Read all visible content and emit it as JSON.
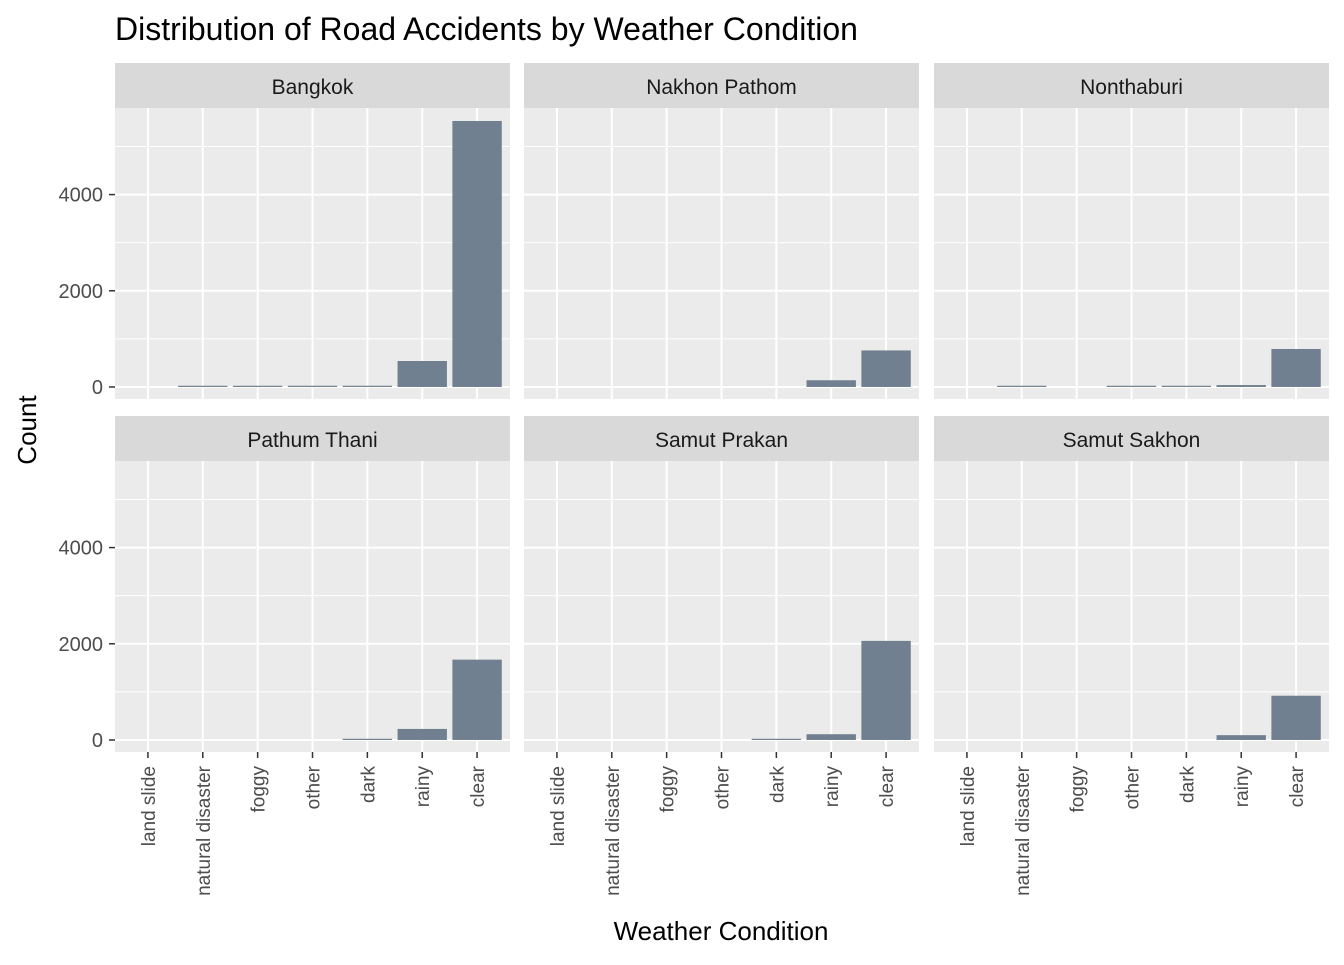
{
  "chart_data": {
    "type": "bar",
    "title": "Distribution of Road Accidents by Weather Condition",
    "xlabel": "Weather Condition",
    "ylabel": "Count",
    "categories": [
      "land slide",
      "natural disaster",
      "foggy",
      "other",
      "dark",
      "rainy",
      "clear"
    ],
    "ylim": [
      -250,
      5800
    ],
    "yticks": [
      0,
      2000,
      4000
    ],
    "facets": [
      {
        "name": "Bangkok",
        "values": [
          0,
          2,
          15,
          15,
          20,
          540,
          5530
        ]
      },
      {
        "name": "Nakhon Pathom",
        "values": [
          0,
          0,
          0,
          0,
          0,
          140,
          760
        ]
      },
      {
        "name": "Nonthaburi",
        "values": [
          0,
          8,
          0,
          10,
          12,
          40,
          790
        ]
      },
      {
        "name": "Pathum Thani",
        "values": [
          0,
          0,
          0,
          0,
          20,
          230,
          1670
        ]
      },
      {
        "name": "Samut Prakan",
        "values": [
          0,
          0,
          0,
          0,
          20,
          120,
          2060
        ]
      },
      {
        "name": "Samut Sakhon",
        "values": [
          0,
          0,
          0,
          0,
          0,
          100,
          920
        ]
      }
    ],
    "grid": true,
    "facet_layout": "2 rows x 3 columns",
    "colors": {
      "bar": "#708090",
      "panel_background": "#ebebeb",
      "strip_background": "#d9d9d9",
      "grid": "#ffffff"
    }
  }
}
